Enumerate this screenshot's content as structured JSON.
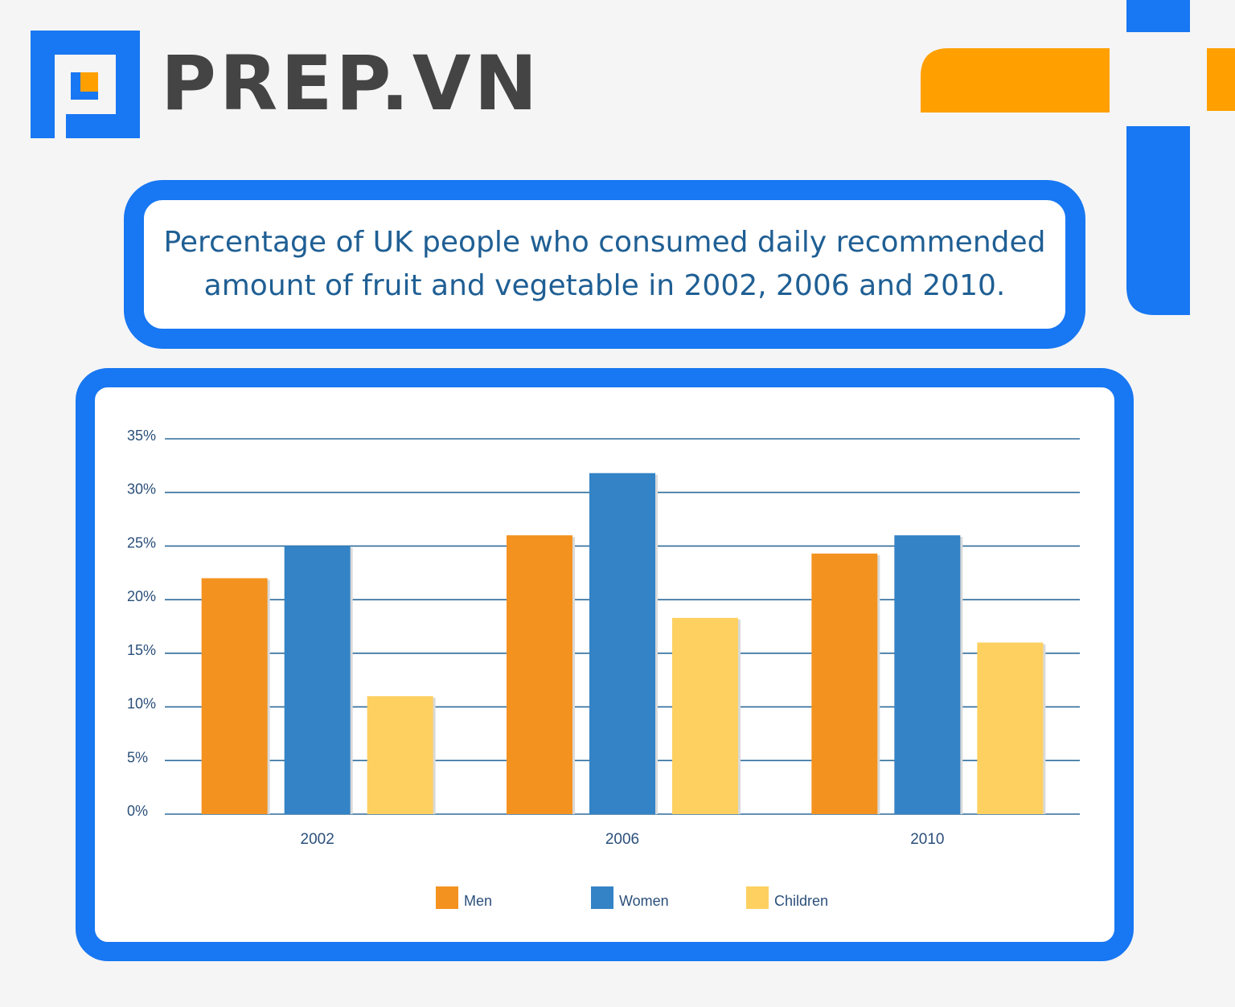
{
  "brand": {
    "name": "PREP.VN",
    "icon": "prep-logo-icon",
    "colors": {
      "blue": "#1877f2",
      "orange": "#ffa000"
    }
  },
  "chart_data": {
    "type": "bar",
    "title": "Percentage of UK people who consumed daily recommended amount of fruit and vegetable in 2002, 2006 and 2010.",
    "categories": [
      "2002",
      "2006",
      "2010"
    ],
    "series": [
      {
        "name": "Men",
        "values": [
          22,
          26,
          24.3
        ],
        "color": "#f4921f"
      },
      {
        "name": "Women",
        "values": [
          25,
          31.8,
          26
        ],
        "color": "#3483c6"
      },
      {
        "name": "Children",
        "values": [
          11,
          18.3,
          16
        ],
        "color": "#fdd060"
      }
    ],
    "ylim": [
      0,
      35
    ],
    "yticks": [
      0,
      5,
      10,
      15,
      20,
      25,
      30,
      35
    ],
    "ytick_labels": [
      "0%",
      "5%",
      "10%",
      "15%",
      "20%",
      "25%",
      "30%",
      "35%"
    ],
    "grid": true,
    "legend": "bottom",
    "xlabel": "",
    "ylabel": ""
  }
}
